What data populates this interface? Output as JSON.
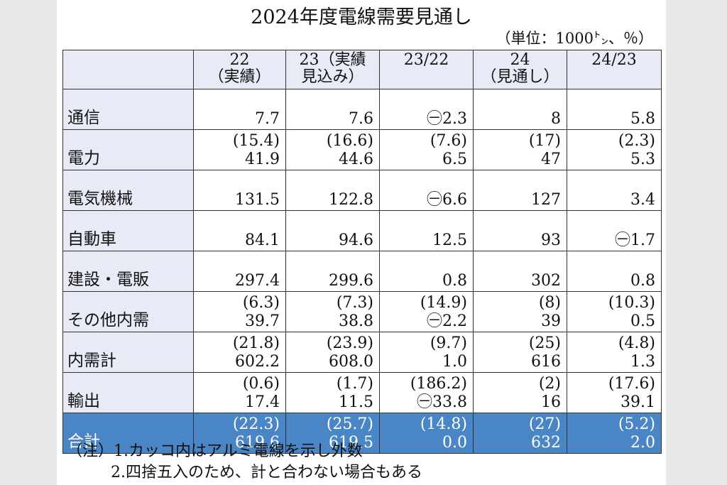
{
  "title": "2024年度電線需要見通し",
  "unit": "（単位：1000㌧、％）",
  "headers": {
    "c22": [
      "22",
      "（実績）"
    ],
    "c23": [
      "23（実績",
      "見込み）"
    ],
    "c2322": [
      "23/22",
      ""
    ],
    "c24": [
      "24",
      "（見通し）"
    ],
    "c2423": [
      "24/23",
      ""
    ]
  },
  "rows": [
    {
      "label": "通信",
      "c22": [
        "",
        "7.7"
      ],
      "c23": [
        "",
        "7.6"
      ],
      "c2322": [
        "",
        "㊀2.3"
      ],
      "c24": [
        "",
        "8"
      ],
      "c2423": [
        "",
        "5.8"
      ]
    },
    {
      "label": "電力",
      "c22": [
        "(15.4)",
        "41.9"
      ],
      "c23": [
        "(16.6)",
        "44.6"
      ],
      "c2322": [
        "(7.6)",
        "6.5"
      ],
      "c24": [
        "(17)",
        "47"
      ],
      "c2423": [
        "(2.3)",
        "5.3"
      ]
    },
    {
      "label": "電気機械",
      "c22": [
        "",
        "131.5"
      ],
      "c23": [
        "",
        "122.8"
      ],
      "c2322": [
        "",
        "㊀6.6"
      ],
      "c24": [
        "",
        "127"
      ],
      "c2423": [
        "",
        "3.4"
      ]
    },
    {
      "label": "自動車",
      "c22": [
        "",
        "84.1"
      ],
      "c23": [
        "",
        "94.6"
      ],
      "c2322": [
        "",
        "12.5"
      ],
      "c24": [
        "",
        "93"
      ],
      "c2423": [
        "",
        "㊀1.7"
      ]
    },
    {
      "label": "建設・電販",
      "c22": [
        "",
        "297.4"
      ],
      "c23": [
        "",
        "299.6"
      ],
      "c2322": [
        "",
        "0.8"
      ],
      "c24": [
        "",
        "302"
      ],
      "c2423": [
        "",
        "0.8"
      ]
    },
    {
      "label": "その他内需",
      "c22": [
        "(6.3)",
        "39.7"
      ],
      "c23": [
        "(7.3)",
        "38.8"
      ],
      "c2322": [
        "(14.9)",
        "㊀2.2"
      ],
      "c24": [
        "(8)",
        "39"
      ],
      "c2423": [
        "(10.3)",
        "0.5"
      ]
    },
    {
      "label": "内需計",
      "c22": [
        "(21.8)",
        "602.2"
      ],
      "c23": [
        "(23.9)",
        "608.0"
      ],
      "c2322": [
        "(9.7)",
        "1.0"
      ],
      "c24": [
        "(25)",
        "616"
      ],
      "c2423": [
        "(4.8)",
        "1.3"
      ]
    },
    {
      "label": "輸出",
      "c22": [
        "(0.6)",
        "17.4"
      ],
      "c23": [
        "(1.7)",
        "11.5"
      ],
      "c2322": [
        "(186.2)",
        "㊀33.8"
      ],
      "c24": [
        "(2)",
        "16"
      ],
      "c2423": [
        "(17.6)",
        "39.1"
      ]
    },
    {
      "label": "合計",
      "c22": [
        "(22.3)",
        "619.6"
      ],
      "c23": [
        "(25.7)",
        "619.5"
      ],
      "c2322": [
        "(14.8)",
        "0.0"
      ],
      "c24": [
        "(27)",
        "632"
      ],
      "c2423": [
        "(5.2)",
        "2.0"
      ]
    }
  ],
  "notes": [
    "（注）1.カッコ内はアルミ電線を示し外数",
    "2.四捨五入のため、計と合わない場合もある"
  ],
  "colors": {
    "header_bg": "#e8ebf6",
    "total_bg": "#4a86c6"
  }
}
